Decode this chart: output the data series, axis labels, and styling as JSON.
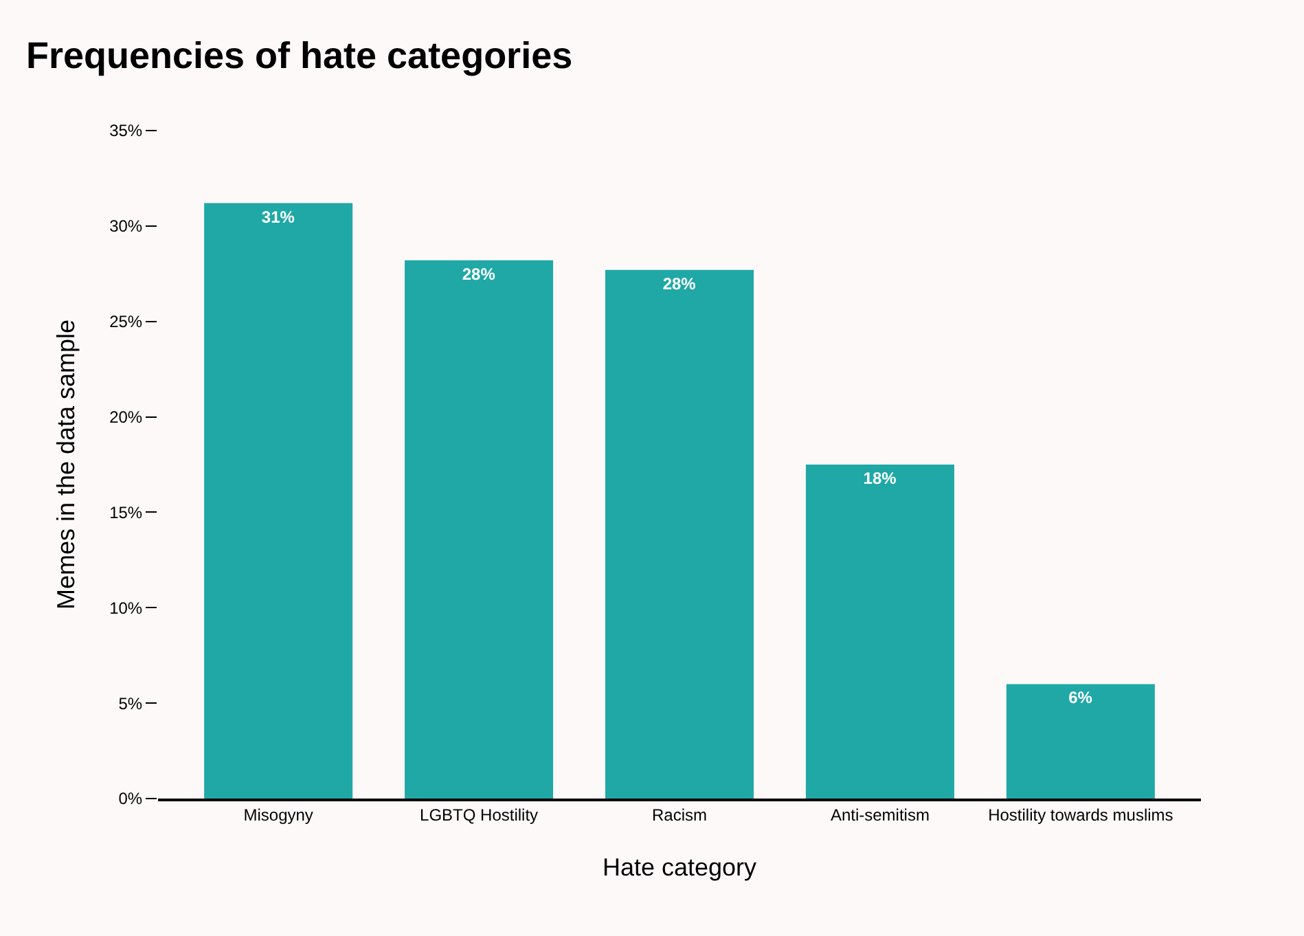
{
  "chart_data": {
    "type": "bar",
    "title": "Frequencies of hate categories",
    "xlabel": "Hate category",
    "ylabel": "Memes in the data sample",
    "categories": [
      "Misogyny",
      "LGBTQ Hostility",
      "Racism",
      "Anti-semitism",
      "Hostility towards muslims"
    ],
    "values": [
      31.2,
      28.2,
      27.7,
      17.5,
      6.0
    ],
    "value_labels": [
      "31%",
      "28%",
      "28%",
      "18%",
      "6%"
    ],
    "color": "#1fa8a6",
    "ylim": [
      0,
      35
    ],
    "yticks": [
      {
        "value": 0,
        "label": "0%"
      },
      {
        "value": 5,
        "label": "5%"
      },
      {
        "value": 10,
        "label": "10%"
      },
      {
        "value": 15,
        "label": "15%"
      },
      {
        "value": 20,
        "label": "20%"
      },
      {
        "value": 25,
        "label": "25%"
      },
      {
        "value": 30,
        "label": "30%"
      },
      {
        "value": 35,
        "label": "35%"
      }
    ],
    "grid": false
  }
}
